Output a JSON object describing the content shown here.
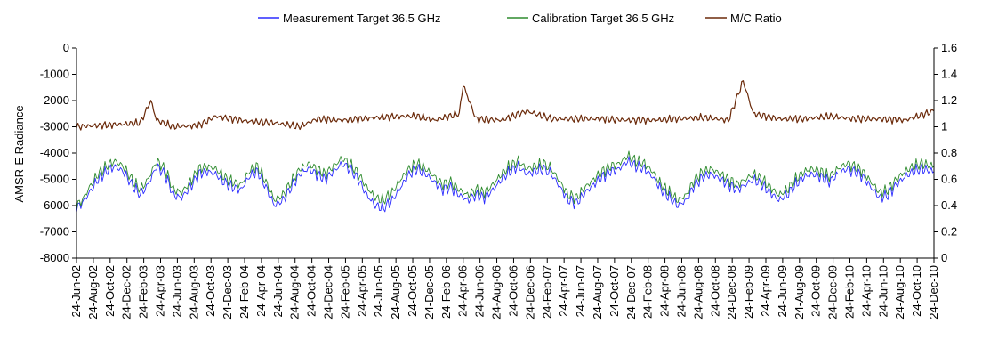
{
  "chart_data": {
    "type": "line",
    "title": "",
    "xlabel": "",
    "ylabel": "AMSR-E Radiance",
    "y2label": "",
    "ylim": [
      -8000,
      0
    ],
    "yticks": [
      0,
      -1000,
      -2000,
      -3000,
      -4000,
      -5000,
      -6000,
      -7000,
      -8000
    ],
    "y2lim": [
      0,
      1.6
    ],
    "y2ticks": [
      1.6,
      1.4,
      1.2,
      1,
      0.8,
      0.6,
      0.4,
      0.2,
      0
    ],
    "x_start": "2002-06-24",
    "x_end": "2010-12-24",
    "x_tick_labels": [
      "24-Jun-02",
      "24-Aug-02",
      "24-Oct-02",
      "24-Dec-02",
      "24-Feb-03",
      "24-Apr-03",
      "24-Jun-03",
      "24-Aug-03",
      "24-Oct-03",
      "24-Dec-03",
      "24-Feb-04",
      "24-Apr-04",
      "24-Jun-04",
      "24-Aug-04",
      "24-Oct-04",
      "24-Dec-04",
      "24-Feb-05",
      "24-Apr-05",
      "24-Jun-05",
      "24-Aug-05",
      "24-Oct-05",
      "24-Dec-05",
      "24-Feb-06",
      "24-Apr-06",
      "24-Jun-06",
      "24-Aug-06",
      "24-Oct-06",
      "24-Dec-06",
      "24-Feb-07",
      "24-Apr-07",
      "24-Jun-07",
      "24-Aug-07",
      "24-Oct-07",
      "24-Dec-07",
      "24-Feb-08",
      "24-Apr-08",
      "24-Jun-08",
      "24-Aug-08",
      "24-Oct-08",
      "24-Dec-08",
      "24-Feb-09",
      "24-Apr-09",
      "24-Jun-09",
      "24-Aug-09",
      "24-Oct-09",
      "24-Dec-09",
      "24-Feb-10",
      "24-Apr-10",
      "24-Jun-10",
      "24-Aug-10",
      "24-Oct-10",
      "24-Dec-10"
    ],
    "legend_position": "top",
    "grid": false,
    "series": [
      {
        "name": "Measurement Target 36.5 GHz",
        "axis": "left",
        "color": "#2c2cff",
        "points": [
          [
            "2002-06-24",
            -6100
          ],
          [
            "2002-07-15",
            -5900
          ],
          [
            "2002-08-10",
            -5500
          ],
          [
            "2002-09-10",
            -5000
          ],
          [
            "2002-10-10",
            -4700
          ],
          [
            "2002-11-10",
            -4500
          ],
          [
            "2002-12-10",
            -4700
          ],
          [
            "2003-01-10",
            -5200
          ],
          [
            "2003-02-10",
            -5600
          ],
          [
            "2003-03-10",
            -5200
          ],
          [
            "2003-04-10",
            -4500
          ],
          [
            "2003-05-10",
            -4800
          ],
          [
            "2003-06-10",
            -5600
          ],
          [
            "2003-07-10",
            -5700
          ],
          [
            "2003-08-10",
            -5300
          ],
          [
            "2003-09-10",
            -4800
          ],
          [
            "2003-10-10",
            -4700
          ],
          [
            "2003-11-10",
            -4800
          ],
          [
            "2003-12-10",
            -5100
          ],
          [
            "2004-01-10",
            -5300
          ],
          [
            "2004-02-10",
            -5400
          ],
          [
            "2004-03-10",
            -4900
          ],
          [
            "2004-04-10",
            -4700
          ],
          [
            "2004-05-10",
            -5300
          ],
          [
            "2004-06-10",
            -6000
          ],
          [
            "2004-07-10",
            -5800
          ],
          [
            "2004-08-10",
            -5300
          ],
          [
            "2004-09-10",
            -4800
          ],
          [
            "2004-10-10",
            -4600
          ],
          [
            "2004-11-10",
            -4800
          ],
          [
            "2004-12-10",
            -5000
          ],
          [
            "2005-01-10",
            -4700
          ],
          [
            "2005-02-10",
            -4400
          ],
          [
            "2005-03-10",
            -4600
          ],
          [
            "2005-04-10",
            -5000
          ],
          [
            "2005-05-10",
            -5600
          ],
          [
            "2005-06-10",
            -6000
          ],
          [
            "2005-07-10",
            -6100
          ],
          [
            "2005-08-10",
            -5800
          ],
          [
            "2005-09-10",
            -5300
          ],
          [
            "2005-10-10",
            -4800
          ],
          [
            "2005-11-10",
            -4600
          ],
          [
            "2005-12-10",
            -4800
          ],
          [
            "2006-01-10",
            -5100
          ],
          [
            "2006-02-10",
            -5400
          ],
          [
            "2006-03-10",
            -5300
          ],
          [
            "2006-04-10",
            -5600
          ],
          [
            "2006-05-10",
            -5800
          ],
          [
            "2006-06-10",
            -5600
          ],
          [
            "2006-07-10",
            -5700
          ],
          [
            "2006-08-10",
            -5400
          ],
          [
            "2006-09-10",
            -5000
          ],
          [
            "2006-10-10",
            -4700
          ],
          [
            "2006-11-10",
            -4500
          ],
          [
            "2006-12-10",
            -4800
          ],
          [
            "2007-01-10",
            -4700
          ],
          [
            "2007-02-10",
            -4600
          ],
          [
            "2007-03-10",
            -4800
          ],
          [
            "2007-04-10",
            -5300
          ],
          [
            "2007-05-10",
            -5800
          ],
          [
            "2007-06-10",
            -5900
          ],
          [
            "2007-07-10",
            -5500
          ],
          [
            "2007-08-10",
            -5200
          ],
          [
            "2007-09-10",
            -4900
          ],
          [
            "2007-10-10",
            -4700
          ],
          [
            "2007-11-10",
            -4600
          ],
          [
            "2007-12-10",
            -4300
          ],
          [
            "2008-01-10",
            -4500
          ],
          [
            "2008-02-10",
            -4600
          ],
          [
            "2008-03-10",
            -4900
          ],
          [
            "2008-04-10",
            -5400
          ],
          [
            "2008-05-10",
            -5700
          ],
          [
            "2008-06-10",
            -6000
          ],
          [
            "2008-07-10",
            -5800
          ],
          [
            "2008-08-10",
            -5200
          ],
          [
            "2008-09-10",
            -4900
          ],
          [
            "2008-10-10",
            -4800
          ],
          [
            "2008-11-10",
            -5000
          ],
          [
            "2008-12-10",
            -5200
          ],
          [
            "2009-01-10",
            -5400
          ],
          [
            "2009-02-10",
            -5200
          ],
          [
            "2009-03-10",
            -5000
          ],
          [
            "2009-04-10",
            -5200
          ],
          [
            "2009-05-10",
            -5500
          ],
          [
            "2009-06-10",
            -5800
          ],
          [
            "2009-07-10",
            -5600
          ],
          [
            "2009-08-10",
            -5200
          ],
          [
            "2009-09-10",
            -4900
          ],
          [
            "2009-10-10",
            -4800
          ],
          [
            "2009-11-10",
            -4900
          ],
          [
            "2009-12-10",
            -5100
          ],
          [
            "2010-01-10",
            -4800
          ],
          [
            "2010-02-10",
            -4600
          ],
          [
            "2010-03-10",
            -4700
          ],
          [
            "2010-04-10",
            -4900
          ],
          [
            "2010-05-10",
            -5300
          ],
          [
            "2010-06-10",
            -5700
          ],
          [
            "2010-07-10",
            -5600
          ],
          [
            "2010-08-10",
            -5200
          ],
          [
            "2010-09-10",
            -4900
          ],
          [
            "2010-10-10",
            -4700
          ],
          [
            "2010-11-10",
            -4600
          ],
          [
            "2010-12-24",
            -4700
          ]
        ]
      },
      {
        "name": "Calibration Target 36.5 GHz",
        "axis": "left",
        "color": "#2e8b2e",
        "points": [
          [
            "2002-06-24",
            -6000
          ],
          [
            "2002-07-15",
            -5800
          ],
          [
            "2002-08-10",
            -5300
          ],
          [
            "2002-09-10",
            -4800
          ],
          [
            "2002-10-10",
            -4500
          ],
          [
            "2002-11-10",
            -4300
          ],
          [
            "2002-12-10",
            -4500
          ],
          [
            "2003-01-10",
            -5000
          ],
          [
            "2003-02-10",
            -5400
          ],
          [
            "2003-03-10",
            -5000
          ],
          [
            "2003-04-10",
            -4300
          ],
          [
            "2003-05-10",
            -4600
          ],
          [
            "2003-06-10",
            -5400
          ],
          [
            "2003-07-10",
            -5500
          ],
          [
            "2003-08-10",
            -5100
          ],
          [
            "2003-09-10",
            -4600
          ],
          [
            "2003-10-10",
            -4500
          ],
          [
            "2003-11-10",
            -4600
          ],
          [
            "2003-12-10",
            -4900
          ],
          [
            "2004-01-10",
            -5100
          ],
          [
            "2004-02-10",
            -5200
          ],
          [
            "2004-03-10",
            -4700
          ],
          [
            "2004-04-10",
            -4500
          ],
          [
            "2004-05-10",
            -5100
          ],
          [
            "2004-06-10",
            -5800
          ],
          [
            "2004-07-10",
            -5600
          ],
          [
            "2004-08-10",
            -5100
          ],
          [
            "2004-09-10",
            -4600
          ],
          [
            "2004-10-10",
            -4400
          ],
          [
            "2004-11-10",
            -4600
          ],
          [
            "2004-12-10",
            -4800
          ],
          [
            "2005-01-10",
            -4500
          ],
          [
            "2005-02-10",
            -4200
          ],
          [
            "2005-03-10",
            -4400
          ],
          [
            "2005-04-10",
            -4800
          ],
          [
            "2005-05-10",
            -5300
          ],
          [
            "2005-06-10",
            -5700
          ],
          [
            "2005-07-10",
            -5800
          ],
          [
            "2005-08-10",
            -5500
          ],
          [
            "2005-09-10",
            -5000
          ],
          [
            "2005-10-10",
            -4600
          ],
          [
            "2005-11-10",
            -4400
          ],
          [
            "2005-12-10",
            -4600
          ],
          [
            "2006-01-10",
            -4900
          ],
          [
            "2006-02-10",
            -5200
          ],
          [
            "2006-03-10",
            -5100
          ],
          [
            "2006-04-10",
            -5400
          ],
          [
            "2006-05-10",
            -5600
          ],
          [
            "2006-06-10",
            -5400
          ],
          [
            "2006-07-10",
            -5500
          ],
          [
            "2006-08-10",
            -5200
          ],
          [
            "2006-09-10",
            -4800
          ],
          [
            "2006-10-10",
            -4500
          ],
          [
            "2006-11-10",
            -4300
          ],
          [
            "2006-12-10",
            -4600
          ],
          [
            "2007-01-10",
            -4500
          ],
          [
            "2007-02-10",
            -4400
          ],
          [
            "2007-03-10",
            -4600
          ],
          [
            "2007-04-10",
            -5100
          ],
          [
            "2007-05-10",
            -5600
          ],
          [
            "2007-06-10",
            -5700
          ],
          [
            "2007-07-10",
            -5300
          ],
          [
            "2007-08-10",
            -5000
          ],
          [
            "2007-09-10",
            -4700
          ],
          [
            "2007-10-10",
            -4500
          ],
          [
            "2007-11-10",
            -4400
          ],
          [
            "2007-12-10",
            -4100
          ],
          [
            "2008-01-10",
            -4300
          ],
          [
            "2008-02-10",
            -4400
          ],
          [
            "2008-03-10",
            -4700
          ],
          [
            "2008-04-10",
            -5200
          ],
          [
            "2008-05-10",
            -5500
          ],
          [
            "2008-06-10",
            -5800
          ],
          [
            "2008-07-10",
            -5600
          ],
          [
            "2008-08-10",
            -5000
          ],
          [
            "2008-09-10",
            -4700
          ],
          [
            "2008-10-10",
            -4600
          ],
          [
            "2008-11-10",
            -4800
          ],
          [
            "2008-12-10",
            -5000
          ],
          [
            "2009-01-10",
            -5200
          ],
          [
            "2009-02-10",
            -5000
          ],
          [
            "2009-03-10",
            -4800
          ],
          [
            "2009-04-10",
            -5000
          ],
          [
            "2009-05-10",
            -5300
          ],
          [
            "2009-06-10",
            -5600
          ],
          [
            "2009-07-10",
            -5400
          ],
          [
            "2009-08-10",
            -5000
          ],
          [
            "2009-09-10",
            -4700
          ],
          [
            "2009-10-10",
            -4600
          ],
          [
            "2009-11-10",
            -4700
          ],
          [
            "2009-12-10",
            -4900
          ],
          [
            "2010-01-10",
            -4600
          ],
          [
            "2010-02-10",
            -4400
          ],
          [
            "2010-03-10",
            -4500
          ],
          [
            "2010-04-10",
            -4700
          ],
          [
            "2010-05-10",
            -5100
          ],
          [
            "2010-06-10",
            -5500
          ],
          [
            "2010-07-10",
            -5400
          ],
          [
            "2010-08-10",
            -5000
          ],
          [
            "2010-09-10",
            -4700
          ],
          [
            "2010-10-10",
            -4500
          ],
          [
            "2010-11-10",
            -4400
          ],
          [
            "2010-12-24",
            -4500
          ]
        ]
      },
      {
        "name": "M/C Ratio",
        "axis": "right",
        "color": "#6b2a0a",
        "points": [
          [
            "2002-06-24",
            1.0
          ],
          [
            "2002-09-10",
            1.01
          ],
          [
            "2002-12-10",
            1.02
          ],
          [
            "2003-02-10",
            1.03
          ],
          [
            "2003-03-20",
            1.2
          ],
          [
            "2003-04-10",
            1.05
          ],
          [
            "2003-06-10",
            1.0
          ],
          [
            "2003-09-10",
            1.01
          ],
          [
            "2003-11-10",
            1.08
          ],
          [
            "2004-01-10",
            1.06
          ],
          [
            "2004-03-10",
            1.04
          ],
          [
            "2004-06-10",
            1.03
          ],
          [
            "2004-09-10",
            1.0
          ],
          [
            "2004-11-10",
            1.06
          ],
          [
            "2005-02-10",
            1.05
          ],
          [
            "2005-06-10",
            1.07
          ],
          [
            "2005-09-10",
            1.08
          ],
          [
            "2005-11-10",
            1.08
          ],
          [
            "2006-01-10",
            1.05
          ],
          [
            "2006-04-10",
            1.1
          ],
          [
            "2006-04-24",
            1.32
          ],
          [
            "2006-06-10",
            1.06
          ],
          [
            "2006-09-10",
            1.05
          ],
          [
            "2006-12-10",
            1.12
          ],
          [
            "2007-03-10",
            1.06
          ],
          [
            "2007-06-10",
            1.06
          ],
          [
            "2007-09-10",
            1.06
          ],
          [
            "2007-12-10",
            1.05
          ],
          [
            "2008-03-10",
            1.05
          ],
          [
            "2008-06-10",
            1.06
          ],
          [
            "2008-09-10",
            1.07
          ],
          [
            "2008-12-10",
            1.05
          ],
          [
            "2009-02-01",
            1.35
          ],
          [
            "2009-03-10",
            1.1
          ],
          [
            "2009-06-10",
            1.06
          ],
          [
            "2009-09-10",
            1.06
          ],
          [
            "2009-12-10",
            1.08
          ],
          [
            "2010-03-10",
            1.06
          ],
          [
            "2010-06-10",
            1.06
          ],
          [
            "2010-09-10",
            1.05
          ],
          [
            "2010-12-24",
            1.12
          ]
        ]
      }
    ]
  }
}
